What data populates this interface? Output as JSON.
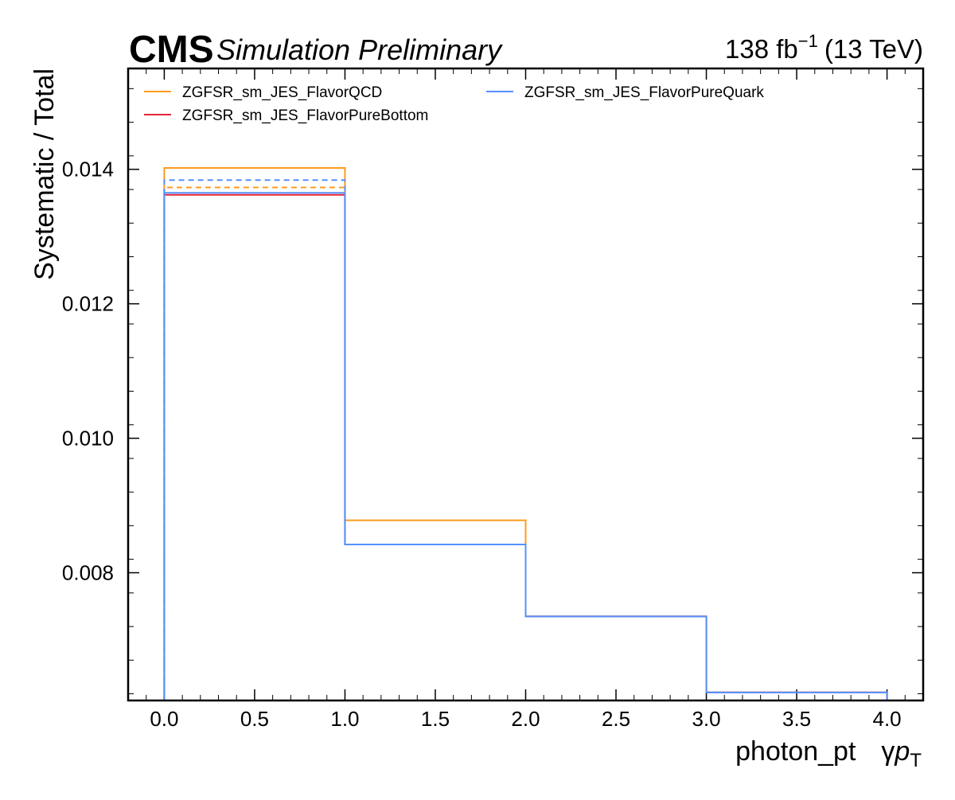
{
  "header": {
    "experiment": "CMS",
    "status": "Simulation Preliminary",
    "lumi_value": "138 fb",
    "lumi_exponent": "−1",
    "energy": "(13 TeV)"
  },
  "chart_data": {
    "type": "line",
    "drawstyle": "steps",
    "xlabel": "photon_pt",
    "xlabel_unit_symbol": "γ",
    "xlabel_unit_var": "p",
    "xlabel_unit_sub": "T",
    "ylabel": "Systematic / Total",
    "xlim": [
      -0.2,
      4.2
    ],
    "ylim": [
      0.0061,
      0.0155
    ],
    "x_ticks": [
      0.0,
      0.5,
      1.0,
      1.5,
      2.0,
      2.5,
      3.0,
      3.5,
      4.0
    ],
    "x_tick_labels": [
      "0.0",
      "0.5",
      "1.0",
      "1.5",
      "2.0",
      "2.5",
      "3.0",
      "3.5",
      "4.0"
    ],
    "y_ticks": [
      0.008,
      0.01,
      0.012,
      0.014
    ],
    "y_tick_labels": [
      "0.008",
      "0.010",
      "0.012",
      "0.014"
    ],
    "grid": false,
    "legend_position": "top-left",
    "bin_edges": [
      0,
      1,
      2,
      3,
      4
    ],
    "series": [
      {
        "name": "ZGFSR_sm_JES_FlavorQCD",
        "color": "#ff9a1e",
        "style": "solid",
        "values": [
          0.01402,
          0.00878,
          0.00735,
          0.00622
        ]
      },
      {
        "name": "",
        "color": "#ff9a1e",
        "style": "dashed",
        "values": [
          0.01373,
          0.00842,
          0.00735,
          0.00622
        ]
      },
      {
        "name": "ZGFSR_sm_JES_FlavorPureBottom",
        "color": "#e42536",
        "style": "solid",
        "values": [
          0.01362,
          0.00842,
          0.00735,
          0.00622
        ]
      },
      {
        "name": "ZGFSR_sm_JES_FlavorPureQuark",
        "color": "#5790fc",
        "style": "solid",
        "values": [
          0.01365,
          0.00842,
          0.00735,
          0.00622
        ]
      },
      {
        "name": "",
        "color": "#5790fc",
        "style": "dashed",
        "values": [
          0.01384,
          0.00842,
          0.00735,
          0.00622
        ]
      }
    ]
  }
}
